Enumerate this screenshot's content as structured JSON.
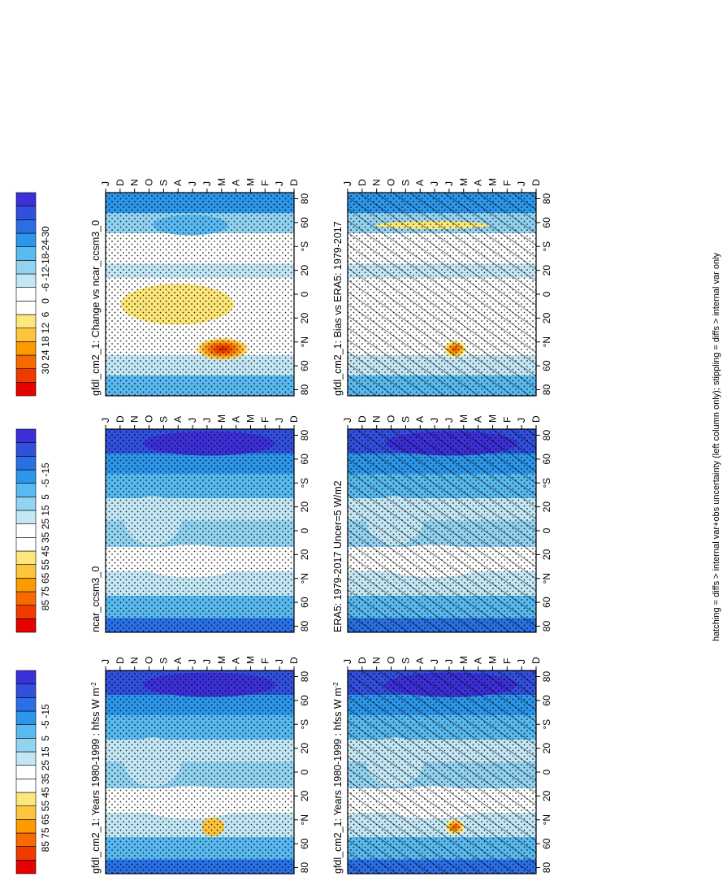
{
  "footnote": "hatching = diffs > internal var+obs uncertainty (left column only); stippling = diffs > internal var only",
  "month_labels": [
    "D",
    "J",
    "F",
    "M",
    "A",
    "M",
    "J",
    "J",
    "A",
    "S",
    "O",
    "N",
    "D",
    "J"
  ],
  "lat_labels": [
    "80",
    "60",
    "°N",
    "20",
    "0",
    "20",
    "°S",
    "60",
    "80"
  ],
  "colors": {
    "abs": [
      "#e60000",
      "#f03a00",
      "#f76a00",
      "#fb9b00",
      "#fdc53c",
      "#fde77a",
      "#ffffff",
      "#ffffff",
      "#c4e7f6",
      "#93d3f2",
      "#58baf0",
      "#2c96ea",
      "#2a6fe5",
      "#3050dd",
      "#3b2fd7"
    ],
    "diff": [
      "#e60000",
      "#f03a00",
      "#f76a00",
      "#fb9b00",
      "#fdc53c",
      "#fde77a",
      "#ffffff",
      "#ffffff",
      "#c4e7f6",
      "#93d3f2",
      "#58baf0",
      "#2c96ea",
      "#2a6fe5",
      "#3050dd",
      "#3b2fd7"
    ]
  },
  "colorbar_abs_labels": [
    "85",
    "75",
    "65",
    "55",
    "45",
    "35",
    "25",
    "15",
    "5",
    "-5",
    "-15"
  ],
  "colorbar_diff_labels": [
    "30",
    "24",
    "18",
    "12",
    "6",
    "0",
    "-6",
    "-12",
    "-18",
    "-24",
    "-30"
  ],
  "chart_data": [
    {
      "type": "heatmap",
      "title": "gfdl_cm2_1: Years 1980-1999 : hfss W m",
      "title_sup": "-2",
      "x_labels": [
        "D",
        "J",
        "F",
        "M",
        "A",
        "M",
        "J",
        "J",
        "A",
        "S",
        "O",
        "N",
        "D",
        "J"
      ],
      "y_labels": [
        "80",
        "60",
        "°N",
        "20",
        "0",
        "20",
        "°S",
        "60",
        "80"
      ],
      "colorbar": [
        "85",
        "75",
        "65",
        "55",
        "45",
        "35",
        "25",
        "15",
        "5",
        "-5",
        "-15"
      ],
      "hatching": true,
      "stippling": true,
      "features": [
        "peak 45-55 near 60N in Jun",
        "values below -5 near 80S in Jan-Dec"
      ]
    },
    {
      "type": "heatmap",
      "title": "gfdl_cm2_1: Years 1980-1999 : hfss W m",
      "title_sup": "-2",
      "x_labels": [
        "D",
        "J",
        "F",
        "M",
        "A",
        "M",
        "J",
        "J",
        "A",
        "S",
        "O",
        "N",
        "D",
        "J"
      ],
      "y_labels": [
        "80",
        "60",
        "°N",
        "20",
        "0",
        "20",
        "°S",
        "60",
        "80"
      ],
      "colorbar": [
        "85",
        "75",
        "65",
        "55",
        "45",
        "35",
        "25",
        "15",
        "5",
        "-5",
        "-15"
      ],
      "hatching": false,
      "stippling": true
    },
    {
      "type": "heatmap",
      "title": "ERA5: 1979-2017 Uncer=5 W/m2",
      "title_sup": "",
      "x_labels": [
        "D",
        "J",
        "F",
        "M",
        "A",
        "M",
        "J",
        "J",
        "A",
        "S",
        "O",
        "N",
        "D",
        "J"
      ],
      "y_labels": [
        "80",
        "60",
        "°N",
        "20",
        "0",
        "20",
        "°S",
        "60",
        "80"
      ],
      "colorbar": [
        "85",
        "75",
        "65",
        "55",
        "45",
        "35",
        "25",
        "15",
        "5",
        "-5",
        "-15"
      ],
      "hatching": true,
      "stippling": true
    },
    {
      "type": "heatmap",
      "title": "ncar_ccsm3_0",
      "title_sup": "",
      "x_labels": [
        "D",
        "J",
        "F",
        "M",
        "A",
        "M",
        "J",
        "J",
        "A",
        "S",
        "O",
        "N",
        "D",
        "J"
      ],
      "y_labels": [
        "80",
        "60",
        "°N",
        "20",
        "0",
        "20",
        "°S",
        "60",
        "80"
      ],
      "colorbar": [
        "85",
        "75",
        "65",
        "55",
        "45",
        "35",
        "25",
        "15",
        "5",
        "-5",
        "-15"
      ],
      "hatching": false,
      "stippling": true
    },
    {
      "type": "heatmap",
      "title": "gfdl_cm2_1: Bias vs ERA5: 1979-2017",
      "title_sup": "",
      "x_labels": [
        "D",
        "J",
        "F",
        "M",
        "A",
        "M",
        "J",
        "J",
        "A",
        "S",
        "O",
        "N",
        "D",
        "J"
      ],
      "y_labels": [
        "80",
        "60",
        "°N",
        "20",
        "0",
        "20",
        "°S",
        "60",
        "80"
      ],
      "colorbar": [
        "30",
        "24",
        "18",
        "12",
        "6",
        "0",
        "-6",
        "-12",
        "-18",
        "-24",
        "-30"
      ],
      "hatching": true,
      "stippling": true
    },
    {
      "type": "heatmap",
      "title": "gfdl_cm2_1: Change vs ncar_ccsm3_0",
      "title_sup": "",
      "x_labels": [
        "D",
        "J",
        "F",
        "M",
        "A",
        "M",
        "J",
        "J",
        "A",
        "S",
        "O",
        "N",
        "D",
        "J"
      ],
      "y_labels": [
        "80",
        "60",
        "°N",
        "20",
        "0",
        "20",
        "°S",
        "60",
        "80"
      ],
      "colorbar": [
        "30",
        "24",
        "18",
        "12",
        "6",
        "0",
        "-6",
        "-12",
        "-18",
        "-24",
        "-30"
      ],
      "hatching": false,
      "stippling": true
    }
  ]
}
